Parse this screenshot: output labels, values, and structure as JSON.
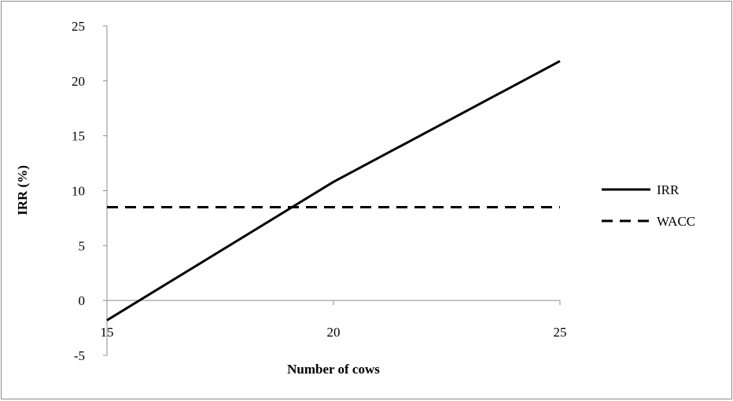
{
  "chart_data": {
    "type": "line",
    "title": "",
    "xlabel": "Number of cows",
    "ylabel": "IRR (%)",
    "xlim": [
      15,
      25
    ],
    "ylim": [
      -5,
      25
    ],
    "x_ticks": [
      15,
      20,
      25
    ],
    "y_ticks": [
      -5,
      0,
      5,
      10,
      15,
      20,
      25
    ],
    "x_tick_labels": [
      "15",
      "20",
      "25"
    ],
    "y_tick_labels": [
      "-5",
      "0",
      "5",
      "10",
      "15",
      "20",
      "25"
    ],
    "grid": false,
    "legend_position": "right",
    "series": [
      {
        "name": "IRR",
        "style": "solid",
        "color": "#000000",
        "x": [
          15,
          20,
          25
        ],
        "y": [
          -1.8,
          10.8,
          21.8
        ]
      },
      {
        "name": "WACC",
        "style": "dashed",
        "color": "#000000",
        "x": [
          15,
          25
        ],
        "y": [
          8.5,
          8.5
        ]
      }
    ]
  }
}
